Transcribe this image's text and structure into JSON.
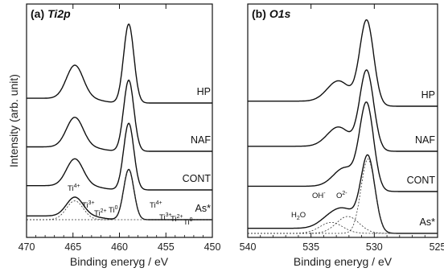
{
  "chart_data": [
    {
      "type": "line",
      "panel_label": "(a)",
      "title": "Ti2p",
      "xlabel": "Binding eneryg / eV",
      "ylabel": "Intensity (arb. unit)",
      "xlim": [
        470,
        450
      ],
      "x_reversed": true,
      "xticks": [
        "470",
        "465",
        "460",
        "455",
        "450"
      ],
      "yticks_shown": false,
      "series": [
        {
          "name": "HP",
          "peaks": [
            {
              "center": 464.8,
              "height": 0.42
            },
            {
              "center": 459.0,
              "height": 1.0
            }
          ]
        },
        {
          "name": "NAF",
          "peaks": [
            {
              "center": 464.8,
              "height": 0.4
            },
            {
              "center": 459.0,
              "height": 0.96
            }
          ]
        },
        {
          "name": "CONT",
          "peaks": [
            {
              "center": 464.8,
              "height": 0.38
            },
            {
              "center": 459.0,
              "height": 0.94
            }
          ]
        },
        {
          "name": "As*",
          "peaks": [
            {
              "center": 464.8,
              "height": 0.3
            },
            {
              "center": 459.0,
              "height": 0.8
            }
          ]
        }
      ],
      "annotations": [
        {
          "base": "Ti",
          "sup": "4+"
        },
        {
          "base": "Ti",
          "sup": "3+"
        },
        {
          "base": "Ti",
          "sup": "2+"
        },
        {
          "base": "Ti",
          "sup": "0"
        },
        {
          "base": "Ti",
          "sup": "4+"
        },
        {
          "base": "Ti",
          "sup": "3+"
        },
        {
          "base": "Ti",
          "sup": "2+"
        },
        {
          "base": "Ti",
          "sup": "0"
        }
      ]
    },
    {
      "type": "line",
      "panel_label": "(b)",
      "title": "O1s",
      "xlabel": "Binding eneryg / eV",
      "xlim": [
        540,
        525
      ],
      "x_reversed": true,
      "xticks": [
        "540",
        "535",
        "530",
        "525"
      ],
      "yticks_shown": false,
      "series": [
        {
          "name": "HP",
          "peaks": [
            {
              "center": 530.6,
              "height": 1.0
            },
            {
              "center": 532.8,
              "height": 0.25
            }
          ]
        },
        {
          "name": "NAF",
          "peaks": [
            {
              "center": 530.6,
              "height": 0.95
            },
            {
              "center": 532.8,
              "height": 0.24
            }
          ]
        },
        {
          "name": "CONT",
          "peaks": [
            {
              "center": 530.6,
              "height": 0.96
            },
            {
              "center": 532.3,
              "height": 0.22
            }
          ]
        },
        {
          "name": "As*",
          "peaks": [
            {
              "center": 530.5,
              "height": 0.88
            },
            {
              "center": 532.1,
              "height": 0.2
            },
            {
              "center": 533.4,
              "height": 0.13
            }
          ]
        }
      ],
      "annotations": [
        {
          "base": "O",
          "sup": "2-"
        },
        {
          "base": "OH",
          "sup": "-"
        },
        {
          "base": "H",
          "sub": "2",
          "tail": "O"
        }
      ]
    }
  ]
}
